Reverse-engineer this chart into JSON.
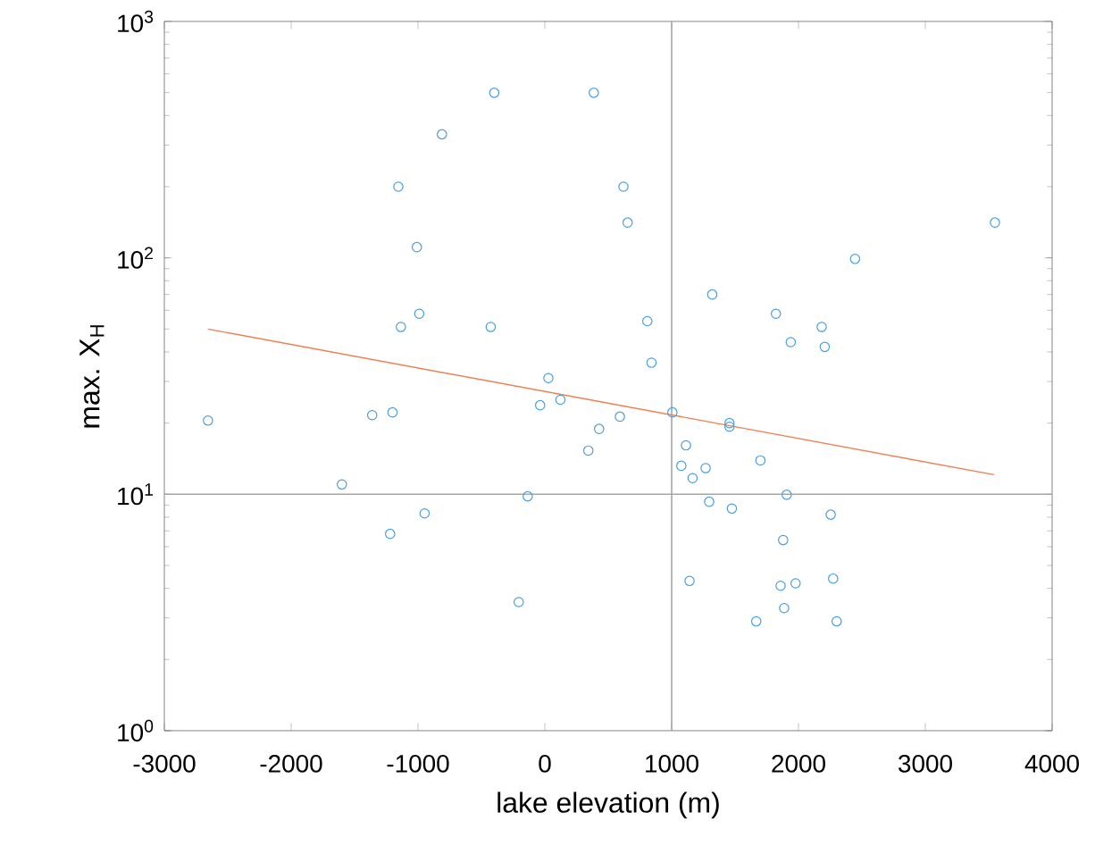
{
  "chart_data": {
    "type": "scatter",
    "xlabel": "lake elevation (m)",
    "ylabel": "max. X$_{H}$",
    "log": "y",
    "marker": "circle",
    "xlim": [
      -3000,
      4000
    ],
    "xticks": [
      -3000,
      -2000,
      -1000,
      0,
      1000,
      2000,
      3000,
      4000
    ],
    "ylim": [
      1,
      1000
    ],
    "yticks": [
      {
        "value": 1,
        "label": "10$^{0}$"
      },
      {
        "value": 10,
        "label": "10$^{1}$"
      },
      {
        "value": 100,
        "label": "10$^{2}$"
      },
      {
        "value": 1000,
        "label": "10$^{3}$"
      }
    ],
    "ref_lines": [
      {
        "axis": "x",
        "value": 1000,
        "color": "#a6a6a6"
      },
      {
        "axis": "y",
        "value": 10,
        "color": "#a6a6a6"
      }
    ],
    "series": [
      {
        "color": "#4a9fe0",
        "x": [
          -399,
          386,
          -811,
          -1155,
          -1009,
          -1135,
          -990,
          -427,
          28,
          -37,
          123,
          -2656,
          -1361,
          -1201,
          620,
          653,
          808,
          841,
          1320,
          1822,
          1939,
          2183,
          2207,
          2446,
          3549,
          1006,
          592,
          1456,
          1456,
          343,
          428,
          1113,
          1076,
          1165,
          1268,
          1700,
          1296,
          1475,
          1907,
          2254,
          1879,
          1141,
          1859,
          1977,
          2273,
          1887,
          1667,
          2301,
          -1600,
          -1220,
          -948,
          -135,
          -206
        ],
        "values": [
          499,
          499,
          333,
          200,
          111,
          51,
          58,
          51,
          31,
          23.8,
          25.1,
          20.5,
          21.6,
          22.2,
          200,
          141,
          54,
          36,
          70,
          58,
          44,
          51,
          42,
          99,
          141,
          22.2,
          21.3,
          20,
          19.3,
          15.3,
          18.9,
          16.1,
          13.2,
          11.7,
          12.9,
          13.9,
          9.3,
          8.7,
          9.95,
          8.2,
          6.4,
          4.3,
          4.1,
          4.2,
          4.4,
          3.3,
          2.9,
          2.9,
          11,
          6.8,
          8.3,
          9.8,
          3.5
        ]
      },
      {
        "type": "line",
        "marker": "none",
        "color": "#f07f50",
        "x": [
          -2656,
          3541
        ],
        "values": [
          50,
          12.1
        ]
      }
    ]
  }
}
